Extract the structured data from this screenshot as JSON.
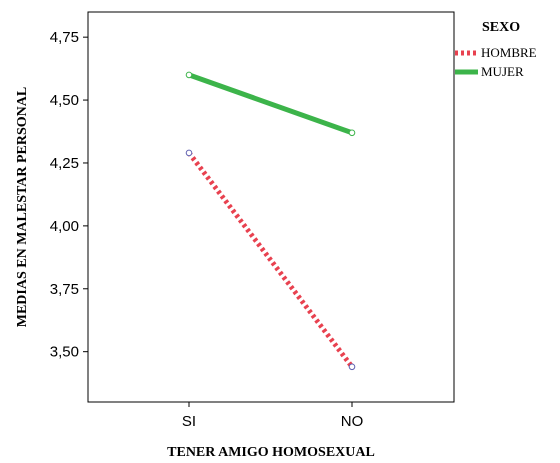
{
  "chart_data": {
    "type": "line",
    "xlabel": "TENER AMIGO HOMOSEXUAL",
    "ylabel": "MEDIAS EN MALESTAR PERSONAL",
    "categories": [
      "SI",
      "NO"
    ],
    "ylim": [
      3.3,
      4.85
    ],
    "yticks": [
      "3,50",
      "3,75",
      "4,00",
      "4,25",
      "4,50",
      "4,75"
    ],
    "ytick_values": [
      3.5,
      3.75,
      4.0,
      4.25,
      4.5,
      4.75
    ],
    "legend_title": "SEXO",
    "legend_position": "top-right, outside plot",
    "grid": false,
    "series": [
      {
        "name": "HOMBRE",
        "values": [
          4.29,
          3.44
        ],
        "color": "#e8414f",
        "style": "dotted"
      },
      {
        "name": "MUJER",
        "values": [
          4.6,
          4.37
        ],
        "color": "#3cb44a",
        "style": "solid"
      }
    ]
  }
}
